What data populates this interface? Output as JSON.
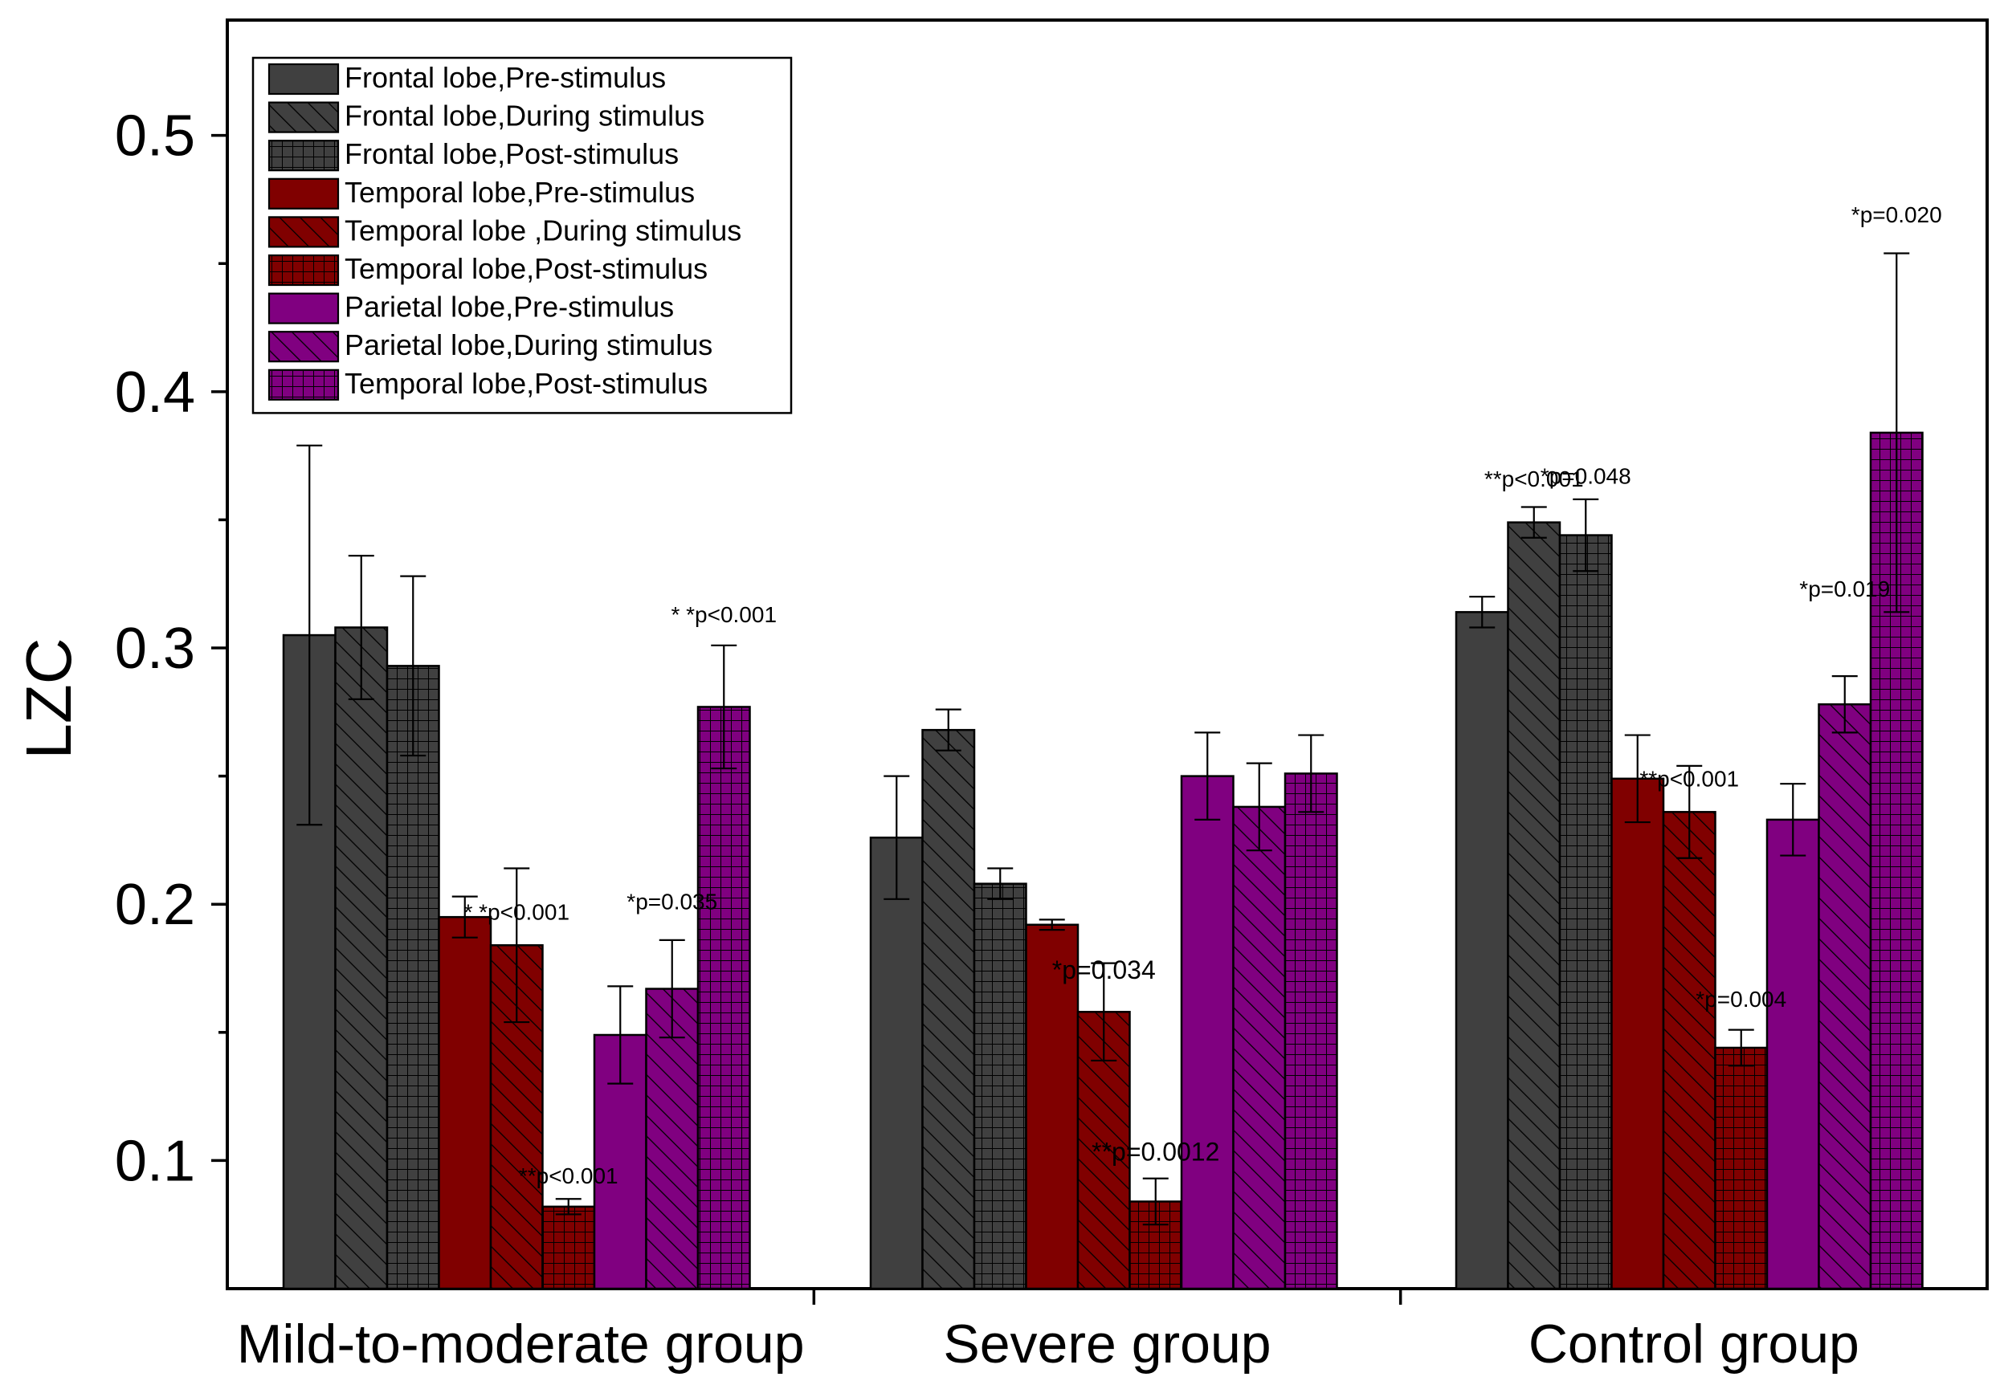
{
  "chart_data": {
    "type": "bar",
    "title": "",
    "xlabel": "",
    "ylabel": "LZC",
    "ylim": [
      0.05,
      0.545
    ],
    "yticks": [
      0.1,
      0.2,
      0.3,
      0.4,
      0.5
    ],
    "ytick_labels": [
      "0.1",
      "0.2",
      "0.3",
      "0.4",
      "0.5"
    ],
    "categories": [
      "Mild-to-moderate group",
      "Severe group",
      "Control group"
    ],
    "legend_position": "top-left",
    "series": [
      {
        "name": "Frontal lobe,Pre-stimulus",
        "color": "#404040",
        "pattern": "solid",
        "values": [
          0.305,
          0.226,
          0.314
        ],
        "errors": [
          0.074,
          0.024,
          0.006
        ]
      },
      {
        "name": "Frontal lobe,During stimulus",
        "color": "#404040",
        "pattern": "hatch",
        "values": [
          0.308,
          0.268,
          0.349
        ],
        "errors": [
          0.028,
          0.008,
          0.006
        ]
      },
      {
        "name": "Frontal lobe,Post-stimulus",
        "color": "#404040",
        "pattern": "grid",
        "values": [
          0.293,
          0.208,
          0.344
        ],
        "errors": [
          0.035,
          0.006,
          0.014
        ]
      },
      {
        "name": "Temporal lobe,Pre-stimulus",
        "color": "#800000",
        "pattern": "solid",
        "values": [
          0.195,
          0.192,
          0.249
        ],
        "errors": [
          0.008,
          0.002,
          0.017
        ]
      },
      {
        "name": "Temporal lobe ,During stimulus",
        "color": "#800000",
        "pattern": "hatch",
        "values": [
          0.184,
          0.158,
          0.236
        ],
        "errors": [
          0.03,
          0.019,
          0.018
        ]
      },
      {
        "name": "Temporal lobe,Post-stimulus",
        "color": "#800000",
        "pattern": "grid",
        "values": [
          0.082,
          0.084,
          0.144
        ],
        "errors": [
          0.003,
          0.009,
          0.007
        ]
      },
      {
        "name": "Parietal lobe,Pre-stimulus",
        "color": "#800080",
        "pattern": "solid",
        "values": [
          0.149,
          0.25,
          0.233
        ],
        "errors": [
          0.019,
          0.017,
          0.014
        ]
      },
      {
        "name": "Parietal lobe,During stimulus",
        "color": "#800080",
        "pattern": "hatch",
        "values": [
          0.167,
          0.238,
          0.278
        ],
        "errors": [
          0.019,
          0.017,
          0.011
        ]
      },
      {
        "name": "Temporal lobe,Post-stimulus",
        "color": "#800080",
        "pattern": "grid",
        "values": [
          0.277,
          0.251,
          0.384
        ],
        "errors": [
          0.024,
          0.015,
          0.07
        ]
      }
    ],
    "annotations": [
      {
        "text": "* *p<0.001",
        "group": 0,
        "series": 4,
        "value": 0.194
      },
      {
        "text": "**p<0.001",
        "group": 0,
        "series": 5,
        "value": 0.091
      },
      {
        "text": "*p=0.035",
        "group": 0,
        "series": 7,
        "value": 0.198
      },
      {
        "text": "* *p<0.001",
        "group": 0,
        "series": 8,
        "value": 0.31
      },
      {
        "text": "*p=0.034",
        "group": 1,
        "series": 4,
        "value": 0.171
      },
      {
        "text": "**p=0.0012",
        "group": 1,
        "series": 5,
        "value": 0.1
      },
      {
        "text": "**p<0.001",
        "group": 2,
        "series": 1,
        "value": 0.363
      },
      {
        "text": "*p=0.048",
        "group": 2,
        "series": 2,
        "value": 0.364
      },
      {
        "text": "**p<0.001",
        "group": 2,
        "series": 4,
        "value": 0.246
      },
      {
        "text": "*p=0.004",
        "group": 2,
        "series": 5,
        "value": 0.16
      },
      {
        "text": "*p=0.019",
        "group": 2,
        "series": 7,
        "value": 0.32
      },
      {
        "text": "*p=0.020",
        "group": 2,
        "series": 8,
        "value": 0.466
      }
    ]
  }
}
